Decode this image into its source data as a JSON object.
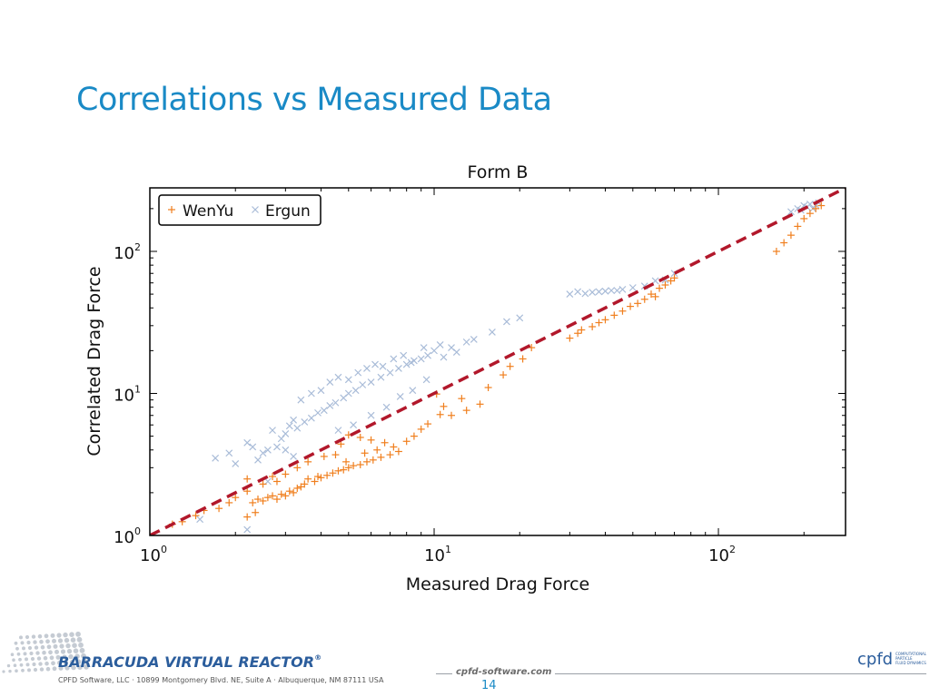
{
  "slide": {
    "title": "Correlations vs Measured Data",
    "page_number": "14"
  },
  "footer": {
    "brand": "BARRACUDA VIRTUAL REACTOR",
    "brand_tm": "®",
    "address": "CPFD Software, LLC · 10899 Montgomery Blvd. NE, Suite A · Albuquerque, NM 87111 USA",
    "website": "cpfd-software.com",
    "logo_text": "cpfd",
    "logo_sub": [
      "COMPUTATIONAL",
      "PARTICLE",
      "FLUID DYNAMICS"
    ]
  },
  "colors": {
    "title": "#1a8ac6",
    "wenyu": "#f07f1e",
    "ergun": "#a9bcd8",
    "reference_line": "#b2182b"
  },
  "chart_data": {
    "type": "scatter",
    "title": "Form B",
    "xlabel": "Measured Drag Force",
    "ylabel": "Correlated Drag Force",
    "xscale": "log",
    "yscale": "log",
    "xlim": [
      1,
      280
    ],
    "ylim": [
      1,
      280
    ],
    "xticks": [
      {
        "base": "10",
        "exp": "0"
      },
      {
        "base": "10",
        "exp": "1"
      },
      {
        "base": "10",
        "exp": "2"
      }
    ],
    "yticks": [
      {
        "base": "10",
        "exp": "0"
      },
      {
        "base": "10",
        "exp": "1"
      },
      {
        "base": "10",
        "exp": "2"
      }
    ],
    "legend_position": "top-left",
    "reference_line": {
      "style": "dashed",
      "from": [
        1,
        1
      ],
      "to": [
        280,
        280
      ]
    },
    "series": [
      {
        "name": "WenYu",
        "marker": "+",
        "points": [
          [
            1.2,
            1.2
          ],
          [
            1.3,
            1.25
          ],
          [
            1.45,
            1.38
          ],
          [
            1.55,
            1.5
          ],
          [
            1.75,
            1.55
          ],
          [
            1.9,
            1.7
          ],
          [
            2.0,
            1.85
          ],
          [
            2.2,
            2.05
          ],
          [
            2.2,
            1.35
          ],
          [
            2.35,
            1.45
          ],
          [
            2.2,
            2.5
          ],
          [
            2.3,
            1.7
          ],
          [
            2.4,
            1.8
          ],
          [
            2.5,
            1.75
          ],
          [
            2.6,
            1.85
          ],
          [
            2.7,
            1.9
          ],
          [
            2.8,
            1.8
          ],
          [
            2.9,
            1.95
          ],
          [
            2.5,
            2.3
          ],
          [
            2.7,
            2.6
          ],
          [
            3.0,
            1.9
          ],
          [
            3.1,
            2.05
          ],
          [
            3.2,
            2.0
          ],
          [
            3.3,
            2.15
          ],
          [
            3.4,
            2.2
          ],
          [
            3.5,
            2.3
          ],
          [
            3.6,
            2.5
          ],
          [
            3.8,
            2.4
          ],
          [
            3.9,
            2.6
          ],
          [
            4.0,
            2.55
          ],
          [
            4.2,
            2.65
          ],
          [
            4.4,
            2.75
          ],
          [
            4.6,
            2.85
          ],
          [
            4.8,
            2.9
          ],
          [
            5.0,
            3.0
          ],
          [
            5.2,
            3.1
          ],
          [
            5.5,
            3.15
          ],
          [
            5.8,
            3.3
          ],
          [
            6.1,
            3.4
          ],
          [
            6.5,
            3.55
          ],
          [
            7.0,
            3.7
          ],
          [
            7.5,
            3.9
          ],
          [
            7.2,
            4.2
          ],
          [
            6.7,
            4.5
          ],
          [
            6.0,
            4.7
          ],
          [
            5.5,
            4.9
          ],
          [
            5.0,
            5.1
          ],
          [
            4.7,
            4.4
          ],
          [
            4.5,
            3.7
          ],
          [
            3.6,
            3.3
          ],
          [
            3.3,
            3.0
          ],
          [
            3.0,
            2.7
          ],
          [
            2.8,
            2.4
          ],
          [
            4.1,
            3.6
          ],
          [
            4.9,
            3.3
          ],
          [
            5.7,
            3.8
          ],
          [
            6.3,
            4.0
          ],
          [
            8.0,
            4.6
          ],
          [
            8.5,
            5.0
          ],
          [
            9.0,
            5.6
          ],
          [
            9.5,
            6.1
          ],
          [
            10.5,
            7.1
          ],
          [
            11.5,
            7.0
          ],
          [
            13.0,
            7.6
          ],
          [
            14.5,
            8.4
          ],
          [
            12.5,
            9.2
          ],
          [
            10.8,
            8.1
          ],
          [
            10.2,
            9.9
          ],
          [
            15.5,
            11.0
          ],
          [
            17.5,
            13.5
          ],
          [
            18.5,
            15.5
          ],
          [
            20.5,
            17.5
          ],
          [
            22.0,
            21.0
          ],
          [
            30,
            24.5
          ],
          [
            32,
            26.5
          ],
          [
            33,
            28.0
          ],
          [
            36,
            29.5
          ],
          [
            38,
            31.5
          ],
          [
            40,
            33.0
          ],
          [
            43,
            35.5
          ],
          [
            46,
            38.0
          ],
          [
            49,
            41.0
          ],
          [
            52,
            43.0
          ],
          [
            55,
            46.0
          ],
          [
            58,
            50.0
          ],
          [
            62,
            55.0
          ],
          [
            65,
            58.0
          ],
          [
            68,
            62.0
          ],
          [
            60,
            48.0
          ],
          [
            70,
            65.0
          ],
          [
            160,
            100.0
          ],
          [
            170,
            115.0
          ],
          [
            180,
            130.0
          ],
          [
            190,
            150.0
          ],
          [
            200,
            170.0
          ],
          [
            210,
            185.0
          ],
          [
            220,
            200.0
          ],
          [
            230,
            210.0
          ]
        ]
      },
      {
        "name": "Ergun",
        "marker": "x",
        "points": [
          [
            1.5,
            1.3
          ],
          [
            1.7,
            3.5
          ],
          [
            1.9,
            3.8
          ],
          [
            2.0,
            3.2
          ],
          [
            2.2,
            4.5
          ],
          [
            2.3,
            4.2
          ],
          [
            2.2,
            1.1
          ],
          [
            2.4,
            3.4
          ],
          [
            2.5,
            3.8
          ],
          [
            2.6,
            4.0
          ],
          [
            2.7,
            5.5
          ],
          [
            2.8,
            4.2
          ],
          [
            2.9,
            4.8
          ],
          [
            3.0,
            5.2
          ],
          [
            3.1,
            5.9
          ],
          [
            3.2,
            6.5
          ],
          [
            3.3,
            5.7
          ],
          [
            3.5,
            6.3
          ],
          [
            3.7,
            6.7
          ],
          [
            3.9,
            7.3
          ],
          [
            4.1,
            7.6
          ],
          [
            4.3,
            8.2
          ],
          [
            4.5,
            8.6
          ],
          [
            4.8,
            9.3
          ],
          [
            5.0,
            10.0
          ],
          [
            5.3,
            10.5
          ],
          [
            5.6,
            11.5
          ],
          [
            6.0,
            12.0
          ],
          [
            6.5,
            13.0
          ],
          [
            7.0,
            14.0
          ],
          [
            7.5,
            15.0
          ],
          [
            8.0,
            16.0
          ],
          [
            8.5,
            17.0
          ],
          [
            9.0,
            17.5
          ],
          [
            9.5,
            18.5
          ],
          [
            10.0,
            20.0
          ],
          [
            10.5,
            22.0
          ],
          [
            11.5,
            21.0
          ],
          [
            13.0,
            23.0
          ],
          [
            3.4,
            9.0
          ],
          [
            3.7,
            10.0
          ],
          [
            4.0,
            10.5
          ],
          [
            4.3,
            12.0
          ],
          [
            4.6,
            13.0
          ],
          [
            5.0,
            12.5
          ],
          [
            5.4,
            14.0
          ],
          [
            5.8,
            15.0
          ],
          [
            6.2,
            16.0
          ],
          [
            6.6,
            15.5
          ],
          [
            7.2,
            17.5
          ],
          [
            7.8,
            18.5
          ],
          [
            8.3,
            16.5
          ],
          [
            9.2,
            21.0
          ],
          [
            10.8,
            18.0
          ],
          [
            12.0,
            19.5
          ],
          [
            13.8,
            24.0
          ],
          [
            16.0,
            27.0
          ],
          [
            18.0,
            32.0
          ],
          [
            20.0,
            34.0
          ],
          [
            3.0,
            4.0
          ],
          [
            3.2,
            3.6
          ],
          [
            2.6,
            2.4
          ],
          [
            4.6,
            5.5
          ],
          [
            5.2,
            6.0
          ],
          [
            6.0,
            7.0
          ],
          [
            6.8,
            8.0
          ],
          [
            7.6,
            9.5
          ],
          [
            8.4,
            10.5
          ],
          [
            9.4,
            12.5
          ],
          [
            30,
            50.0
          ],
          [
            32,
            52.0
          ],
          [
            34,
            50.5
          ],
          [
            36,
            51.5
          ],
          [
            38,
            52.0
          ],
          [
            40,
            52.5
          ],
          [
            42,
            53.0
          ],
          [
            44,
            53.0
          ],
          [
            46,
            54.0
          ],
          [
            50,
            55.5
          ],
          [
            55,
            57.0
          ],
          [
            60,
            62.0
          ],
          [
            65,
            63.0
          ],
          [
            70,
            70.0
          ],
          [
            180,
            190.0
          ],
          [
            190,
            200.0
          ],
          [
            200,
            210.0
          ],
          [
            210,
            215.0
          ],
          [
            215,
            200.0
          ],
          [
            220,
            212.0
          ],
          [
            225,
            220.0
          ],
          [
            195,
            195.0
          ],
          [
            205,
            205.0
          ]
        ]
      }
    ]
  }
}
